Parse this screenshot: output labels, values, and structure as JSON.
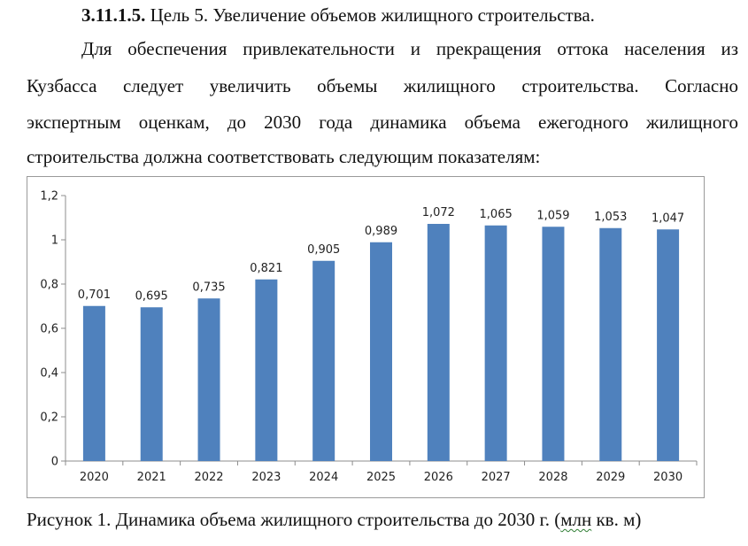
{
  "section": {
    "number": "3.11.1.5.",
    "title": "Цель 5. Увеличение объемов жилищного строительства."
  },
  "paragraph": {
    "lines": [
      "Для обеспечения привлекательности и прекращения оттока населения из",
      "Кузбасса следует увеличить объемы жилищного строительства. Согласно",
      "экспертным оценкам, до 2030 года динамика объема ежегодного жилищного",
      "строительства должна соответствовать следующим показателям:"
    ]
  },
  "chart_data": {
    "type": "bar",
    "categories": [
      "2020",
      "2021",
      "2022",
      "2023",
      "2024",
      "2025",
      "2026",
      "2027",
      "2028",
      "2029",
      "2030"
    ],
    "values": [
      0.701,
      0.695,
      0.735,
      0.821,
      0.905,
      0.989,
      1.072,
      1.065,
      1.059,
      1.053,
      1.047
    ],
    "value_labels": [
      "0,701",
      "0,695",
      "0,735",
      "0,821",
      "0,905",
      "0,989",
      "1,072",
      "1,065",
      "1,059",
      "1,053",
      "1,047"
    ],
    "y_ticks": [
      0,
      0.2,
      0.4,
      0.6,
      0.8,
      1,
      1.2
    ],
    "y_tick_labels": [
      "0",
      "0,2",
      "0,4",
      "0,6",
      "0,8",
      "1",
      "1,2"
    ],
    "ylim": [
      0,
      1.2
    ],
    "bar_color": "#4f81bd",
    "grid": false,
    "legend": false
  },
  "caption": {
    "main": "Рисунок 1. Динамика объема жилищного строительства до 2030 г. (",
    "underlined": "млн",
    "tail": " кв. м)"
  }
}
